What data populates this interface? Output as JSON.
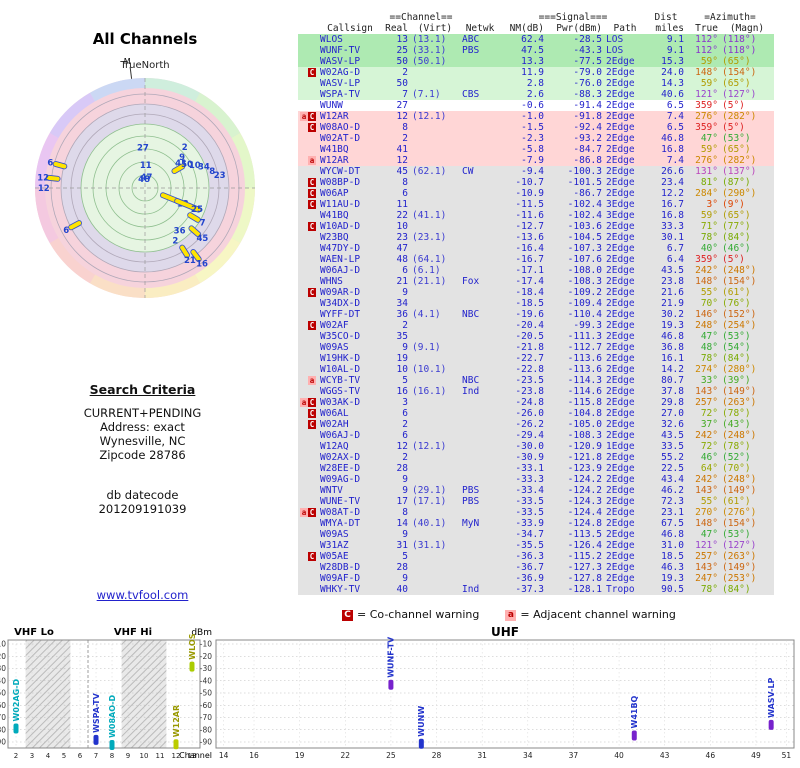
{
  "left": {
    "title": "All Channels",
    "north_label": "TrueNorth",
    "magnetic_label": "M",
    "search": {
      "heading": "Search Criteria",
      "lines": [
        "CURRENT+PENDING",
        "Address: exact",
        "Wynesville, NC",
        "Zipcode 28786"
      ],
      "datecode_label": "db datecode",
      "datecode_value": "201209191039",
      "link": "www.tvfool.com"
    }
  },
  "legend": {
    "c_symbol": "C",
    "c_text": "= Co-channel warning",
    "a_symbol": "a",
    "a_text": "= Adjacent channel warning"
  },
  "table": {
    "group_headers": {
      "channel": "==Channel==",
      "signal": "===Signal===",
      "dist": "Dist",
      "azimuth": "=Azimuth="
    },
    "columns": {
      "callsign": "Callsign",
      "real": "Real",
      "virt": "(Virt)",
      "netwk": "Netwk",
      "nm": "NM(dB)",
      "pwr": "Pwr(dBm)",
      "path": "Path",
      "miles": "miles",
      "true": "True",
      "magn": "(Magn)"
    },
    "rows": [
      [
        "",
        "WLOS",
        "13",
        "(13.1)",
        "ABC",
        "62.4",
        "-28.5",
        "LOS",
        "9.1",
        "112°",
        "(118°)",
        "g1",
        "#8833cc"
      ],
      [
        "",
        "WUNF-TV",
        "25",
        "(33.1)",
        "PBS",
        "47.5",
        "-43.3",
        "LOS",
        "9.1",
        "112°",
        "(118°)",
        "g1",
        "#8833cc"
      ],
      [
        "",
        "WASV-LP",
        "50",
        "(50.1)",
        "",
        "13.3",
        "-77.5",
        "2Edge",
        "15.3",
        "59°",
        "(65°)",
        "g1",
        "#b09c00"
      ],
      [
        "C",
        "W02AG-D",
        "2",
        "",
        "",
        "11.9",
        "-79.0",
        "2Edge",
        "24.0",
        "148°",
        "(154°)",
        "g2",
        "#cc6611"
      ],
      [
        "",
        "WASV-LP",
        "50",
        "",
        "",
        "2.8",
        "-76.0",
        "2Edge",
        "14.3",
        "59°",
        "(65°)",
        "g2",
        "#b09c00"
      ],
      [
        "",
        "WSPA-TV",
        "7",
        "(7.1)",
        "CBS",
        "2.6",
        "-88.3",
        "2Edge",
        "40.6",
        "121°",
        "(127°)",
        "g2",
        "#9944cc"
      ],
      [
        "",
        "WUNW",
        "27",
        "",
        "",
        "-0.6",
        "-91.4",
        "2Edge",
        "6.5",
        "359°",
        "(5°)",
        "w",
        "#dd2222"
      ],
      [
        "aC",
        "W12AR",
        "12",
        "(12.1)",
        "",
        "-1.0",
        "-91.8",
        "2Edge",
        "7.4",
        "276°",
        "(282°)",
        "p",
        "#cc8800"
      ],
      [
        "C",
        "W08AO-D",
        "8",
        "",
        "",
        "-1.5",
        "-92.4",
        "2Edge",
        "6.5",
        "359°",
        "(5°)",
        "p",
        "#dd2222"
      ],
      [
        "",
        "W02AT-D",
        "2",
        "",
        "",
        "-2.3",
        "-93.2",
        "2Edge",
        "46.8",
        "47°",
        "(53°)",
        "p",
        "#33aa33"
      ],
      [
        "",
        "W41BQ",
        "41",
        "",
        "",
        "-5.8",
        "-84.7",
        "2Edge",
        "16.8",
        "59°",
        "(65°)",
        "p",
        "#b09c00"
      ],
      [
        "a",
        "W12AR",
        "12",
        "",
        "",
        "-7.9",
        "-86.8",
        "2Edge",
        "7.4",
        "276°",
        "(282°)",
        "p",
        "#cc8800"
      ],
      [
        "",
        "WYCW-DT",
        "45",
        "(62.1)",
        "CW",
        "-9.4",
        "-100.3",
        "2Edge",
        "26.6",
        "131°",
        "(137°)",
        "gr",
        "#bb44bb"
      ],
      [
        "C",
        "W08BP-D",
        "8",
        "",
        "",
        "-10.7",
        "-101.5",
        "2Edge",
        "23.4",
        "81°",
        "(87°)",
        "gr",
        "#77aa00"
      ],
      [
        "C",
        "W06AP",
        "6",
        "",
        "",
        "-10.9",
        "-86.7",
        "2Edge",
        "12.2",
        "284°",
        "(290°)",
        "gr",
        "#cc8800"
      ],
      [
        "C",
        "W11AU-D",
        "11",
        "",
        "",
        "-11.5",
        "-102.4",
        "3Edge",
        "16.7",
        "3°",
        "(9°)",
        "gr",
        "#dd4400"
      ],
      [
        "",
        "W41BQ",
        "22",
        "(41.1)",
        "",
        "-11.6",
        "-102.4",
        "3Edge",
        "16.8",
        "59°",
        "(65°)",
        "gr",
        "#b09c00"
      ],
      [
        "C",
        "W10AD-D",
        "10",
        "",
        "",
        "-12.7",
        "-103.6",
        "2Edge",
        "33.3",
        "71°",
        "(77°)",
        "gr",
        "#88aa00"
      ],
      [
        "",
        "W23BQ",
        "23",
        "(23.1)",
        "",
        "-13.6",
        "-104.5",
        "2Edge",
        "30.1",
        "78°",
        "(84°)",
        "gr",
        "#77aa00"
      ],
      [
        "",
        "W47DY-D",
        "47",
        "",
        "",
        "-16.4",
        "-107.3",
        "2Edge",
        "6.7",
        "40°",
        "(46°)",
        "gr",
        "#33aa33"
      ],
      [
        "",
        "WAEN-LP",
        "48",
        "(64.1)",
        "",
        "-16.7",
        "-107.6",
        "2Edge",
        "6.4",
        "359°",
        "(5°)",
        "gr",
        "#dd2222"
      ],
      [
        "",
        "W06AJ-D",
        "6",
        "(6.1)",
        "",
        "-17.1",
        "-108.0",
        "2Edge",
        "43.5",
        "242°",
        "(248°)",
        "gr",
        "#cc7700"
      ],
      [
        "",
        "WHNS",
        "21",
        "(21.1)",
        "Fox",
        "-17.4",
        "-108.3",
        "2Edge",
        "23.8",
        "148°",
        "(154°)",
        "gr",
        "#cc6611"
      ],
      [
        "C",
        "W09AR-D",
        "9",
        "",
        "",
        "-18.4",
        "-109.2",
        "2Edge",
        "21.6",
        "55°",
        "(61°)",
        "gr",
        "#b09c00"
      ],
      [
        "",
        "W34DX-D",
        "34",
        "",
        "",
        "-18.5",
        "-109.4",
        "2Edge",
        "21.9",
        "70°",
        "(76°)",
        "gr",
        "#88aa00"
      ],
      [
        "",
        "WYFF-DT",
        "36",
        "(4.1)",
        "NBC",
        "-19.6",
        "-110.4",
        "2Edge",
        "30.2",
        "146°",
        "(152°)",
        "gr",
        "#cc6611"
      ],
      [
        "C",
        "W02AF",
        "2",
        "",
        "",
        "-20.4",
        "-99.3",
        "2Edge",
        "19.3",
        "248°",
        "(254°)",
        "gr",
        "#cc7700"
      ],
      [
        "",
        "W35CO-D",
        "35",
        "",
        "",
        "-20.5",
        "-111.3",
        "2Edge",
        "46.8",
        "47°",
        "(53°)",
        "gr",
        "#33aa33"
      ],
      [
        "",
        "W09AS",
        "9",
        "(9.1)",
        "",
        "-21.8",
        "-112.7",
        "2Edge",
        "36.8",
        "48°",
        "(54°)",
        "gr",
        "#33aa33"
      ],
      [
        "",
        "W19HK-D",
        "19",
        "",
        "",
        "-22.7",
        "-113.6",
        "2Edge",
        "16.1",
        "78°",
        "(84°)",
        "gr",
        "#77aa00"
      ],
      [
        "",
        "W10AL-D",
        "10",
        "(10.1)",
        "",
        "-22.8",
        "-113.6",
        "2Edge",
        "14.2",
        "274°",
        "(280°)",
        "gr",
        "#cc8800"
      ],
      [
        "a",
        "WCYB-TV",
        "5",
        "",
        "NBC",
        "-23.5",
        "-114.3",
        "2Edge",
        "80.7",
        "33°",
        "(39°)",
        "gr",
        "#44aa22"
      ],
      [
        "",
        "WGGS-TV",
        "16",
        "(16.1)",
        "Ind",
        "-23.8",
        "-114.6",
        "2Edge",
        "37.8",
        "143°",
        "(149°)",
        "gr",
        "#cc6611"
      ],
      [
        "aC",
        "W03AK-D",
        "3",
        "",
        "",
        "-24.8",
        "-115.8",
        "2Edge",
        "29.8",
        "257°",
        "(263°)",
        "gr",
        "#cc7700"
      ],
      [
        "C",
        "W06AL",
        "6",
        "",
        "",
        "-26.0",
        "-104.8",
        "2Edge",
        "27.0",
        "72°",
        "(78°)",
        "gr",
        "#88aa00"
      ],
      [
        "C",
        "W02AH",
        "2",
        "",
        "",
        "-26.2",
        "-105.0",
        "2Edge",
        "32.6",
        "37°",
        "(43°)",
        "gr",
        "#44aa22"
      ],
      [
        "",
        "W06AJ-D",
        "6",
        "",
        "",
        "-29.4",
        "-108.3",
        "2Edge",
        "43.5",
        "242°",
        "(248°)",
        "gr",
        "#cc7700"
      ],
      [
        "",
        "W12AQ",
        "12",
        "(12.1)",
        "",
        "-30.0",
        "-120.9",
        "1Edge",
        "33.5",
        "72°",
        "(78°)",
        "gr",
        "#88aa00"
      ],
      [
        "",
        "W02AX-D",
        "2",
        "",
        "",
        "-30.9",
        "-121.8",
        "2Edge",
        "55.2",
        "46°",
        "(52°)",
        "gr",
        "#33aa33"
      ],
      [
        "",
        "W28EE-D",
        "28",
        "",
        "",
        "-33.1",
        "-123.9",
        "2Edge",
        "22.5",
        "64°",
        "(70°)",
        "gr",
        "#99a800"
      ],
      [
        "",
        "W09AG-D",
        "9",
        "",
        "",
        "-33.3",
        "-124.2",
        "2Edge",
        "43.4",
        "242°",
        "(248°)",
        "gr",
        "#cc7700"
      ],
      [
        "",
        "WNTV",
        "9",
        "(29.1)",
        "PBS",
        "-33.4",
        "-124.2",
        "2Edge",
        "46.2",
        "143°",
        "(149°)",
        "gr",
        "#cc6611"
      ],
      [
        "",
        "WUNE-TV",
        "17",
        "(17.1)",
        "PBS",
        "-33.5",
        "-124.3",
        "2Edge",
        "72.3",
        "55°",
        "(61°)",
        "gr",
        "#b09c00"
      ],
      [
        "aC",
        "W08AT-D",
        "8",
        "",
        "",
        "-33.5",
        "-124.4",
        "2Edge",
        "23.1",
        "270°",
        "(276°)",
        "gr",
        "#cc8800"
      ],
      [
        "",
        "WMYA-DT",
        "14",
        "(40.1)",
        "MyN",
        "-33.9",
        "-124.8",
        "2Edge",
        "67.5",
        "148°",
        "(154°)",
        "gr",
        "#cc6611"
      ],
      [
        "",
        "W09AS",
        "9",
        "",
        "",
        "-34.7",
        "-113.5",
        "2Edge",
        "46.8",
        "47°",
        "(53°)",
        "gr",
        "#33aa33"
      ],
      [
        "",
        "W31AZ",
        "31",
        "(31.1)",
        "",
        "-35.5",
        "-126.4",
        "2Edge",
        "31.0",
        "121°",
        "(127°)",
        "gr",
        "#9944cc"
      ],
      [
        "C",
        "W05AE",
        "5",
        "",
        "",
        "-36.3",
        "-115.2",
        "2Edge",
        "18.5",
        "257°",
        "(263°)",
        "gr",
        "#cc7700"
      ],
      [
        "",
        "W28DB-D",
        "28",
        "",
        "",
        "-36.7",
        "-127.3",
        "2Edge",
        "46.3",
        "143°",
        "(149°)",
        "gr",
        "#cc6611"
      ],
      [
        "",
        "W09AF-D",
        "9",
        "",
        "",
        "-36.9",
        "-127.8",
        "2Edge",
        "19.3",
        "247°",
        "(253°)",
        "gr",
        "#cc7700"
      ],
      [
        "",
        "WHKY-TV",
        "40",
        "",
        "Ind",
        "-37.3",
        "-128.1",
        "Tropo",
        "90.5",
        "78°",
        "(84°)",
        "gr",
        "#77aa00"
      ]
    ]
  },
  "chart_data": [
    {
      "type": "radar",
      "title": "All Channels",
      "north_label": "TrueNorth",
      "rim_colors": [
        "#cfeedd",
        "#d8f3cf",
        "#e3f7c9",
        "#eef8c6",
        "#f7f6c4",
        "#faedc2",
        "#fadfc6",
        "#f9d2cf",
        "#f4c9e0",
        "#e9c6f2",
        "#d8c9f7",
        "#cbd8f4"
      ],
      "points": [
        {
          "label": "48",
          "azimuth": 354,
          "radius": 0.08
        },
        {
          "label": "47",
          "azimuth": 8,
          "radius": 0.1
        },
        {
          "label": "11",
          "azimuth": 2,
          "radius": 0.21
        },
        {
          "label": "27",
          "azimuth": 357,
          "radius": 0.37
        },
        {
          "label": "9",
          "azimuth": 50,
          "radius": 0.44
        },
        {
          "label": "2",
          "azimuth": 44,
          "radius": 0.52
        },
        {
          "label": "41",
          "azimuth": 55,
          "radius": 0.4
        },
        {
          "label": "50",
          "azimuth": 60,
          "radius": 0.35,
          "pill": true
        },
        {
          "label": "10",
          "azimuth": 65,
          "radius": 0.5
        },
        {
          "label": "34",
          "azimuth": 70,
          "radius": 0.57
        },
        {
          "label": "8",
          "azimuth": 76,
          "radius": 0.63
        },
        {
          "label": "23",
          "azimuth": 80,
          "radius": 0.69
        },
        {
          "label": "13",
          "azimuth": 112,
          "radius": 0.28,
          "pill": true,
          "big": true
        },
        {
          "label": "25",
          "azimuth": 112,
          "radius": 0.42,
          "pill": true,
          "big": true
        },
        {
          "label": "7",
          "azimuth": 121,
          "radius": 0.52,
          "pill": true
        },
        {
          "label": "45",
          "azimuth": 131,
          "radius": 0.6,
          "pill": true
        },
        {
          "label": "36",
          "azimuth": 141,
          "radius": 0.5
        },
        {
          "label": "16",
          "azimuth": 143,
          "radius": 0.77,
          "pill": true
        },
        {
          "label": "21",
          "azimuth": 148,
          "radius": 0.68,
          "pill": true
        },
        {
          "label": "2",
          "azimuth": 150,
          "radius": 0.55
        },
        {
          "label": "6",
          "azimuth": 242,
          "radius": 0.72,
          "pill": true
        },
        {
          "label": "12",
          "azimuth": 270,
          "radius": 0.92
        },
        {
          "label": "12",
          "azimuth": 276,
          "radius": 0.84,
          "pill": true
        },
        {
          "label": "6",
          "azimuth": 285,
          "radius": 0.8,
          "pill": true
        }
      ]
    },
    {
      "type": "scatter",
      "title": "Signal level by channel",
      "ylabel": "dBm",
      "xlabel": "Channel",
      "ylim": [
        -95,
        -5
      ],
      "yticks": [
        -10,
        -20,
        -30,
        -40,
        -50,
        -60,
        -70,
        -80,
        -90
      ],
      "sections": [
        {
          "label": "VHF Lo"
        },
        {
          "label": "VHF Hi"
        },
        {
          "label": "UHF"
        }
      ],
      "vhf_ticks": [
        2,
        3,
        4,
        5,
        6,
        7,
        8,
        9,
        10,
        11,
        12,
        13
      ],
      "uhf_ticks": [
        14,
        16,
        19,
        22,
        25,
        28,
        31,
        34,
        37,
        40,
        43,
        46,
        49,
        51
      ],
      "hatched_channel_bands": [
        [
          2.6,
          5.4
        ],
        [
          8.6,
          11.4
        ]
      ],
      "stations": [
        {
          "callsign": "W02AG-D",
          "channel": 2,
          "dbm": -79.0,
          "label_color": "#00aabb",
          "marker_color": "#00aabb"
        },
        {
          "callsign": "WSPA-TV",
          "channel": 7,
          "dbm": -88.3,
          "label_color": "#2233cc",
          "marker_color": "#2233cc"
        },
        {
          "callsign": "W08AO-D",
          "channel": 8,
          "dbm": -92.4,
          "label_color": "#00aabb",
          "marker_color": "#00aabb"
        },
        {
          "callsign": "W12AR",
          "channel": 12,
          "dbm": -91.8,
          "label_color": "#999900",
          "marker_color": "#bbcc00"
        },
        {
          "callsign": "WLOS",
          "channel": 13,
          "dbm": -28.5,
          "label_color": "#999900",
          "marker_color": "#aacc00"
        },
        {
          "callsign": "WUNF-TV",
          "channel": 25,
          "dbm": -43.3,
          "label_color": "#2233cc",
          "marker_color": "#7722cc"
        },
        {
          "callsign": "WUNW",
          "channel": 27,
          "dbm": -91.4,
          "label_color": "#2233cc",
          "marker_color": "#2233cc"
        },
        {
          "callsign": "W41BQ",
          "channel": 41,
          "dbm": -84.7,
          "label_color": "#2233cc",
          "marker_color": "#7722cc"
        },
        {
          "callsign": "WASV-LP",
          "channel": 50,
          "dbm": -76.0,
          "label_color": "#2233cc",
          "marker_color": "#7722cc"
        }
      ]
    }
  ]
}
